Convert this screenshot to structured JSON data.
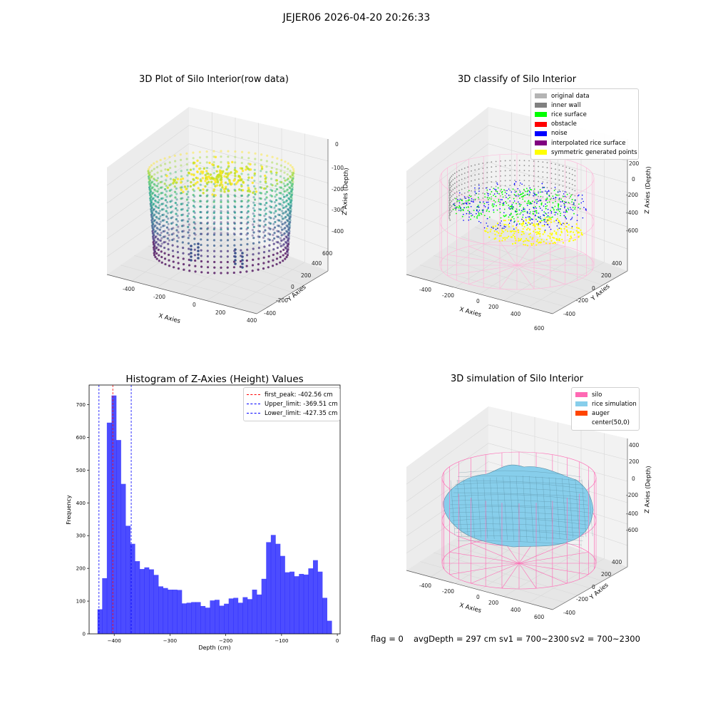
{
  "suptitle": "JEJER06 2026-04-20 20:26:33",
  "panels": {
    "raw": {
      "title": "3D Plot of Silo Interior(row data)",
      "xlabel": "X Axies",
      "ylabel": "Y Axies",
      "zlabel": "Z Axies (Depth)",
      "x_ticks": [
        "-400",
        "-200",
        "0",
        "200",
        "400"
      ],
      "y_ticks": [
        "-400",
        "-200",
        "0",
        "200",
        "400",
        "600"
      ],
      "z_ticks": [
        "-400",
        "-300",
        "-200",
        "-100",
        "0"
      ]
    },
    "classify": {
      "title": "3D classify of Silo Interior",
      "xlabel": "X Axies",
      "ylabel": "Y Axies",
      "zlabel": "Z Axies (Depth)",
      "x_ticks": [
        "-400",
        "-200",
        "0",
        "200",
        "400",
        "600"
      ],
      "y_ticks": [
        "-400",
        "-200",
        "0",
        "200",
        "400"
      ],
      "z_ticks": [
        "-600",
        "-400",
        "-200",
        "0",
        "200"
      ],
      "legend": [
        {
          "label": "original data",
          "color": "#b4b4b4"
        },
        {
          "label": "inner wall",
          "color": "#808080"
        },
        {
          "label": "rice surface",
          "color": "#00ff00"
        },
        {
          "label": "obstacle",
          "color": "#ff0000"
        },
        {
          "label": "noise",
          "color": "#0000ff"
        },
        {
          "label": "interpolated rice surface",
          "color": "#800080"
        },
        {
          "label": "symmetric generated points",
          "color": "#ffff00"
        }
      ]
    },
    "simulation": {
      "title": "3D simulation of Silo Interior",
      "xlabel": "X Axies",
      "ylabel": "Y Axies",
      "zlabel": "Z Axies (Depth)",
      "x_ticks": [
        "-400",
        "-200",
        "0",
        "200",
        "400",
        "600"
      ],
      "y_ticks": [
        "-400",
        "-200",
        "0",
        "200",
        "400"
      ],
      "z_ticks": [
        "-600",
        "-400",
        "-200",
        "0",
        "200",
        "400"
      ],
      "legend": [
        {
          "label": "silo",
          "color": "#ff69b4"
        },
        {
          "label": "rice simulation",
          "color": "#87ceeb"
        },
        {
          "label": "auger",
          "color": "#ff4500"
        },
        {
          "label": "center(50,0)",
          "color": "#ffffff"
        }
      ]
    }
  },
  "status": {
    "flag": "flag = 0",
    "avg_depth": "avgDepth = 297 cm",
    "sv1": "sv1 = 700~2300",
    "sv2": "sv2 = 700~2300"
  },
  "chart_data": [
    {
      "type": "bar",
      "title": "Histogram of Z-Axies (Height) Values",
      "xlabel": "Depth (cm)",
      "ylabel": "Frequency",
      "bar_color": "#0000ff",
      "bin_width": 8.4,
      "bin_start": -430,
      "values": [
        75,
        170,
        645,
        728,
        592,
        458,
        330,
        275,
        222,
        198,
        203,
        197,
        180,
        145,
        140,
        135,
        135,
        134,
        93,
        95,
        97,
        97,
        85,
        80,
        102,
        104,
        86,
        92,
        108,
        110,
        95,
        112,
        106,
        135,
        120,
        168,
        280,
        302,
        275,
        238,
        188,
        190,
        176,
        183,
        181,
        200,
        225,
        190,
        110,
        40
      ],
      "xlim": [
        -445,
        5
      ],
      "ylim": [
        0,
        760
      ],
      "x_ticks": [
        -400,
        -300,
        -200,
        -100,
        0
      ],
      "y_ticks": [
        0,
        100,
        200,
        300,
        400,
        500,
        600,
        700
      ],
      "vlines": [
        {
          "label": "first_peak: -402.56 cm",
          "x": -402.56,
          "color": "#ff0000"
        },
        {
          "label": "Upper_limit: -369.51 cm",
          "x": -369.51,
          "color": "#0000ff"
        },
        {
          "label": "Lower_limit: -427.35 cm",
          "x": -427.35,
          "color": "#0000ff"
        }
      ]
    }
  ]
}
